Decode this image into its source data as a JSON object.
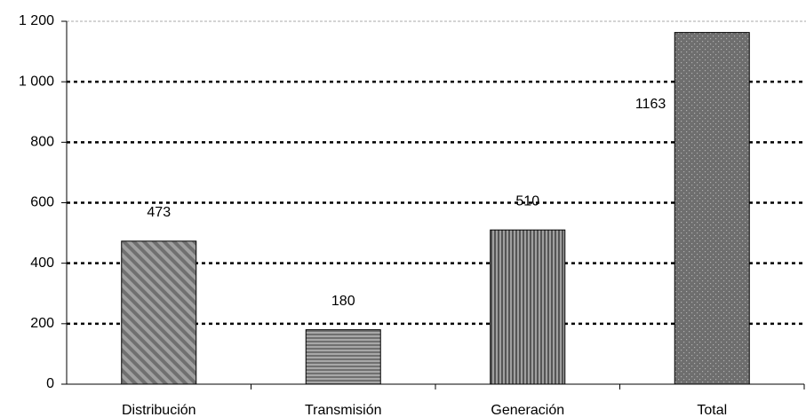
{
  "chart_data": {
    "type": "bar",
    "categories": [
      "Distribución",
      "Transmisión",
      "Generación",
      "Total"
    ],
    "values": [
      473,
      180,
      510,
      1163
    ],
    "color": "#8c8c8c",
    "ylim": [
      0,
      1200
    ],
    "yticks": [
      0,
      200,
      400,
      600,
      800,
      {
        "value": 1000,
        "label": "1 000"
      },
      {
        "value": 1200,
        "label": "1 200"
      }
    ],
    "grid": true
  }
}
